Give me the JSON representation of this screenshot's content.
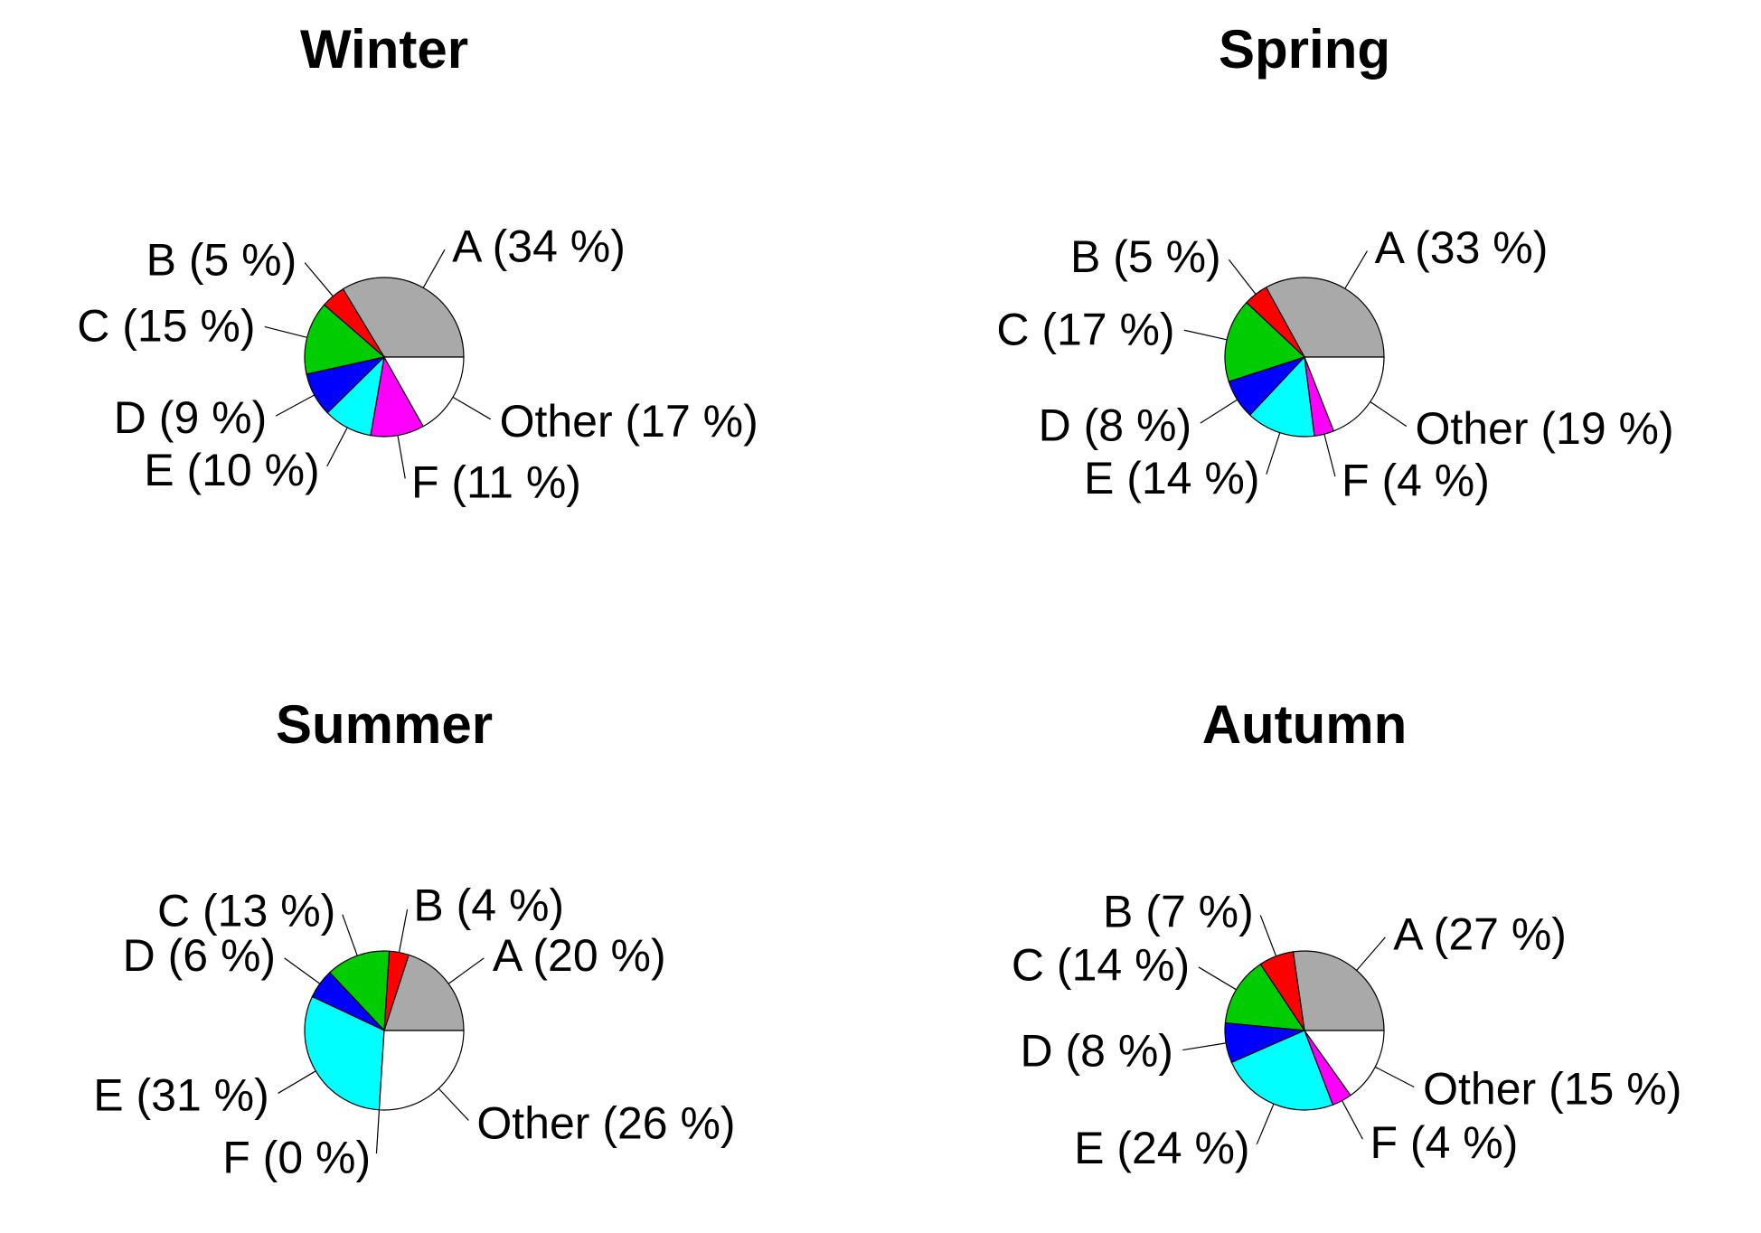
{
  "colors": {
    "A": "#a9a9a9",
    "B": "#ff0000",
    "C": "#00cd00",
    "D": "#0000ff",
    "E": "#00ffff",
    "F": "#ff00ff",
    "Other": "#ffffff"
  },
  "chart_data": [
    {
      "type": "pie",
      "title": "Winter",
      "slices": [
        {
          "key": "A",
          "value": 34,
          "label": "A (34 %)"
        },
        {
          "key": "B",
          "value": 5,
          "label": "B (5 %)"
        },
        {
          "key": "C",
          "value": 15,
          "label": "C (15 %)"
        },
        {
          "key": "D",
          "value": 9,
          "label": "D (9 %)"
        },
        {
          "key": "E",
          "value": 10,
          "label": "E (10 %)"
        },
        {
          "key": "F",
          "value": 11,
          "label": "F (11 %)"
        },
        {
          "key": "Other",
          "value": 17,
          "label": "Other (17 %)"
        }
      ]
    },
    {
      "type": "pie",
      "title": "Spring",
      "slices": [
        {
          "key": "A",
          "value": 33,
          "label": "A (33 %)"
        },
        {
          "key": "B",
          "value": 5,
          "label": "B (5 %)"
        },
        {
          "key": "C",
          "value": 17,
          "label": "C (17 %)"
        },
        {
          "key": "D",
          "value": 8,
          "label": "D (8 %)"
        },
        {
          "key": "E",
          "value": 14,
          "label": "E (14 %)"
        },
        {
          "key": "F",
          "value": 4,
          "label": "F (4 %)"
        },
        {
          "key": "Other",
          "value": 19,
          "label": "Other (19 %)"
        }
      ]
    },
    {
      "type": "pie",
      "title": "Summer",
      "slices": [
        {
          "key": "A",
          "value": 20,
          "label": "A (20 %)"
        },
        {
          "key": "B",
          "value": 4,
          "label": "B (4 %)"
        },
        {
          "key": "C",
          "value": 13,
          "label": "C (13 %)"
        },
        {
          "key": "D",
          "value": 6,
          "label": "D (6 %)"
        },
        {
          "key": "E",
          "value": 31,
          "label": "E (31 %)"
        },
        {
          "key": "F",
          "value": 0,
          "label": "F (0 %)"
        },
        {
          "key": "Other",
          "value": 26,
          "label": "Other (26 %)"
        }
      ]
    },
    {
      "type": "pie",
      "title": "Autumn",
      "slices": [
        {
          "key": "A",
          "value": 27,
          "label": "A (27 %)"
        },
        {
          "key": "B",
          "value": 7,
          "label": "B (7 %)"
        },
        {
          "key": "C",
          "value": 14,
          "label": "C (14 %)"
        },
        {
          "key": "D",
          "value": 8,
          "label": "D (8 %)"
        },
        {
          "key": "E",
          "value": 24,
          "label": "E (24 %)"
        },
        {
          "key": "F",
          "value": 4,
          "label": "F (4 %)"
        },
        {
          "key": "Other",
          "value": 15,
          "label": "Other (15 %)"
        }
      ]
    }
  ]
}
